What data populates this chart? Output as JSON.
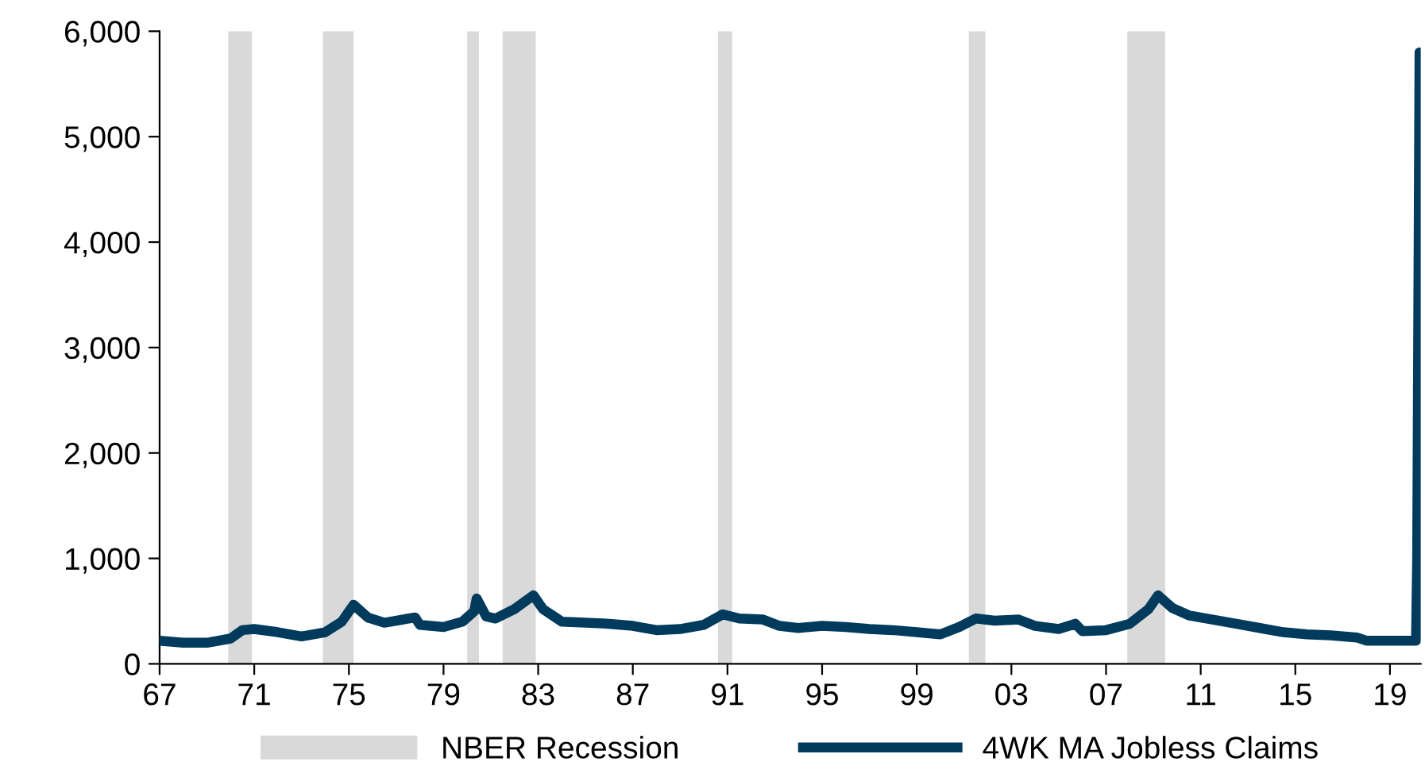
{
  "chart_data": {
    "type": "line",
    "x": [
      1967,
      1968,
      1969,
      1970,
      1970.5,
      1971,
      1972,
      1973,
      1974,
      1974.7,
      1975.2,
      1975.8,
      1976.5,
      1977.8,
      1978,
      1979,
      1979.8,
      1980.3,
      1980.4,
      1980.8,
      1981.2,
      1982,
      1982.8,
      1983.2,
      1984,
      1985,
      1986,
      1987,
      1988,
      1989,
      1990,
      1990.8,
      1991.5,
      1992.5,
      1993.2,
      1994,
      1995,
      1996,
      1997,
      1998,
      1999,
      2000,
      2000.8,
      2001.5,
      2002.3,
      2003.3,
      2004,
      2005,
      2005.7,
      2006,
      2007,
      2008,
      2008.8,
      2009.2,
      2009.8,
      2010.5,
      2011.5,
      2012.5,
      2013.5,
      2014.5,
      2015.5,
      2016.5,
      2017.6,
      2018,
      2019,
      2020.1,
      2020.15,
      2020.25
    ],
    "series": [
      {
        "name": "4WK MA Jobless Claims",
        "color": "#003a5c",
        "values": [
          220,
          200,
          200,
          240,
          320,
          330,
          300,
          260,
          300,
          400,
          560,
          440,
          390,
          440,
          370,
          350,
          400,
          500,
          620,
          450,
          430,
          520,
          650,
          520,
          400,
          390,
          380,
          360,
          320,
          330,
          370,
          470,
          430,
          420,
          360,
          340,
          360,
          350,
          330,
          320,
          300,
          280,
          350,
          430,
          410,
          420,
          360,
          330,
          380,
          310,
          320,
          380,
          520,
          650,
          530,
          460,
          420,
          380,
          340,
          300,
          280,
          270,
          250,
          220,
          220,
          220,
          1000,
          5800
        ]
      }
    ],
    "bands": [
      {
        "axis": "x",
        "from": 1969.9,
        "to": 1970.9,
        "label": "NBER Recession",
        "color": "#d9d9d9"
      },
      {
        "axis": "x",
        "from": 1973.9,
        "to": 1975.2,
        "color": "#d9d9d9"
      },
      {
        "axis": "x",
        "from": 1980.0,
        "to": 1980.5,
        "color": "#d9d9d9"
      },
      {
        "axis": "x",
        "from": 1981.5,
        "to": 1982.9,
        "color": "#d9d9d9"
      },
      {
        "axis": "x",
        "from": 1990.6,
        "to": 1991.2,
        "color": "#d9d9d9"
      },
      {
        "axis": "x",
        "from": 2001.2,
        "to": 2001.9,
        "color": "#d9d9d9"
      },
      {
        "axis": "x",
        "from": 2007.9,
        "to": 2009.5,
        "color": "#d9d9d9"
      }
    ],
    "xlim": [
      1967,
      2020.3
    ],
    "xticks": [
      {
        "value": 1967,
        "label": "67"
      },
      {
        "value": 1971,
        "label": "71"
      },
      {
        "value": 1975,
        "label": "75"
      },
      {
        "value": 1979,
        "label": "79"
      },
      {
        "value": 1983,
        "label": "83"
      },
      {
        "value": 1987,
        "label": "87"
      },
      {
        "value": 1991,
        "label": "91"
      },
      {
        "value": 1995,
        "label": "95"
      },
      {
        "value": 1999,
        "label": "99"
      },
      {
        "value": 2003,
        "label": "03"
      },
      {
        "value": 2007,
        "label": "07"
      },
      {
        "value": 2011,
        "label": "11"
      },
      {
        "value": 2015,
        "label": "15"
      },
      {
        "value": 2019,
        "label": "19"
      }
    ],
    "ylim": [
      0,
      6000
    ],
    "yticks": [
      {
        "value": 0,
        "label": "0"
      },
      {
        "value": 1000,
        "label": "1,000"
      },
      {
        "value": 2000,
        "label": "2,000"
      },
      {
        "value": 3000,
        "label": "3,000"
      },
      {
        "value": 4000,
        "label": "4,000"
      },
      {
        "value": 5000,
        "label": "5,000"
      },
      {
        "value": 6000,
        "label": "6,000"
      }
    ],
    "grid": false,
    "legend": "bottom",
    "marker": "none",
    "line_style": "solid"
  }
}
